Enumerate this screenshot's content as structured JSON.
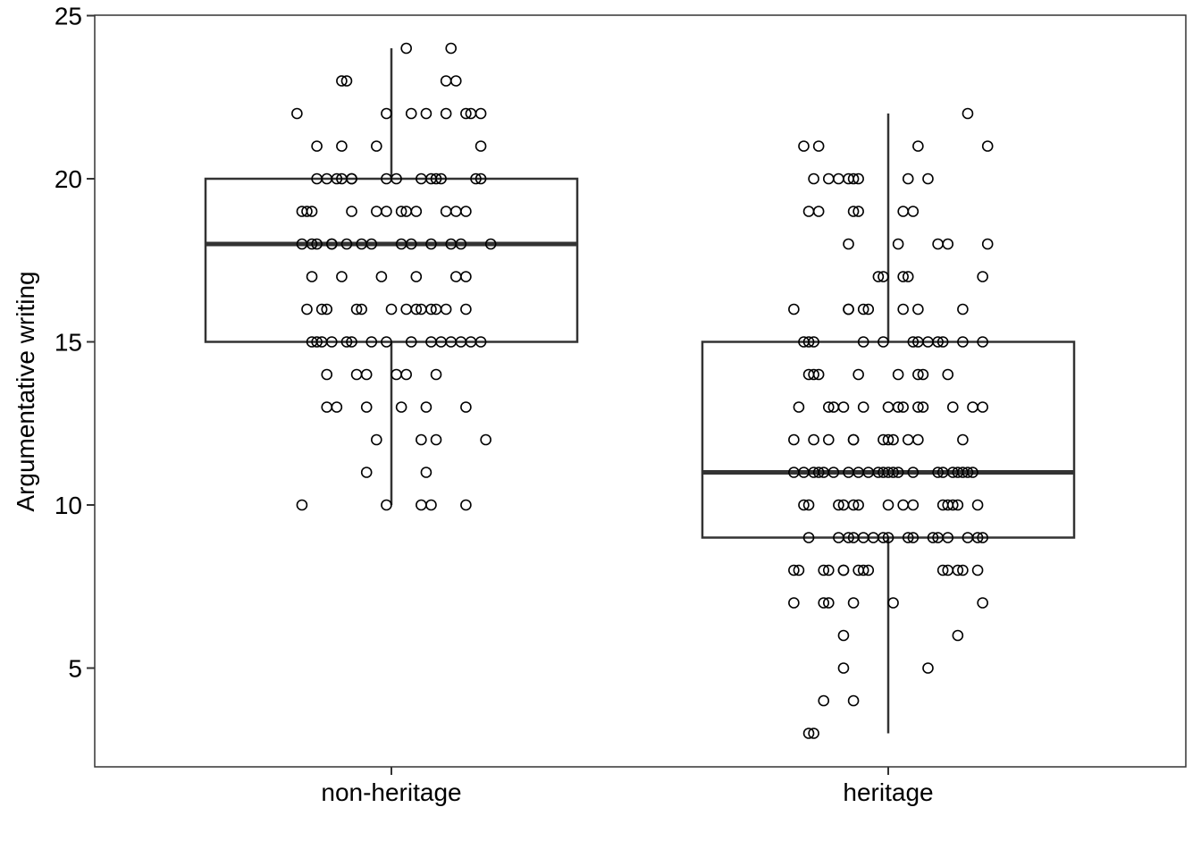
{
  "chart_data": {
    "type": "box",
    "title": "",
    "xlabel": "",
    "ylabel": "Argumentative writing",
    "ylim": [
      2,
      25
    ],
    "yticks": [
      5,
      10,
      15,
      20,
      25
    ],
    "ytick_labels": [
      "5",
      "10",
      "15",
      "20",
      "25"
    ],
    "grid": false,
    "legend": "none",
    "colors": {
      "box": "#333333",
      "point": "#000000",
      "axis": "#333333",
      "background": "#ffffff"
    },
    "categories": [
      "non-heritage",
      "heritage"
    ],
    "groups": [
      {
        "category": "non-heritage",
        "box": {
          "whisker_low": 10,
          "q1": 15,
          "median": 18,
          "q3": 20,
          "whisker_high": 24
        },
        "points": [
          [
            -0.18,
            10
          ],
          [
            -0.01,
            10
          ],
          [
            0.06,
            10
          ],
          [
            0.08,
            10
          ],
          [
            0.15,
            10
          ],
          [
            -0.05,
            11
          ],
          [
            0.07,
            11
          ],
          [
            -0.03,
            12
          ],
          [
            0.06,
            12
          ],
          [
            0.09,
            12
          ],
          [
            0.19,
            12
          ],
          [
            -0.13,
            13
          ],
          [
            -0.11,
            13
          ],
          [
            -0.05,
            13
          ],
          [
            0.02,
            13
          ],
          [
            0.07,
            13
          ],
          [
            0.15,
            13
          ],
          [
            -0.13,
            14
          ],
          [
            -0.07,
            14
          ],
          [
            -0.05,
            14
          ],
          [
            0.01,
            14
          ],
          [
            0.03,
            14
          ],
          [
            0.09,
            14
          ],
          [
            -0.16,
            15
          ],
          [
            -0.15,
            15
          ],
          [
            -0.14,
            15
          ],
          [
            -0.12,
            15
          ],
          [
            -0.09,
            15
          ],
          [
            -0.08,
            15
          ],
          [
            -0.04,
            15
          ],
          [
            -0.01,
            15
          ],
          [
            0.04,
            15
          ],
          [
            0.08,
            15
          ],
          [
            0.1,
            15
          ],
          [
            0.12,
            15
          ],
          [
            0.14,
            15
          ],
          [
            0.16,
            15
          ],
          [
            0.18,
            15
          ],
          [
            -0.17,
            16
          ],
          [
            -0.14,
            16
          ],
          [
            -0.13,
            16
          ],
          [
            -0.07,
            16
          ],
          [
            -0.06,
            16
          ],
          [
            0.0,
            16
          ],
          [
            0.03,
            16
          ],
          [
            0.05,
            16
          ],
          [
            0.06,
            16
          ],
          [
            0.08,
            16
          ],
          [
            0.09,
            16
          ],
          [
            0.11,
            16
          ],
          [
            0.15,
            16
          ],
          [
            -0.16,
            17
          ],
          [
            -0.1,
            17
          ],
          [
            -0.02,
            17
          ],
          [
            0.05,
            17
          ],
          [
            0.13,
            17
          ],
          [
            0.15,
            17
          ],
          [
            -0.18,
            18
          ],
          [
            -0.16,
            18
          ],
          [
            -0.15,
            18
          ],
          [
            -0.12,
            18
          ],
          [
            -0.12,
            18
          ],
          [
            -0.09,
            18
          ],
          [
            -0.06,
            18
          ],
          [
            -0.04,
            18
          ],
          [
            0.02,
            18
          ],
          [
            0.04,
            18
          ],
          [
            0.08,
            18
          ],
          [
            0.12,
            18
          ],
          [
            0.14,
            18
          ],
          [
            0.2,
            18
          ],
          [
            -0.18,
            19
          ],
          [
            -0.17,
            19
          ],
          [
            -0.16,
            19
          ],
          [
            -0.08,
            19
          ],
          [
            -0.03,
            19
          ],
          [
            -0.01,
            19
          ],
          [
            0.02,
            19
          ],
          [
            0.03,
            19
          ],
          [
            0.05,
            19
          ],
          [
            0.11,
            19
          ],
          [
            0.13,
            19
          ],
          [
            0.15,
            19
          ],
          [
            -0.15,
            20
          ],
          [
            -0.13,
            20
          ],
          [
            -0.11,
            20
          ],
          [
            -0.1,
            20
          ],
          [
            -0.08,
            20
          ],
          [
            -0.08,
            20
          ],
          [
            -0.01,
            20
          ],
          [
            0.01,
            20
          ],
          [
            0.06,
            20
          ],
          [
            0.08,
            20
          ],
          [
            0.09,
            20
          ],
          [
            0.1,
            20
          ],
          [
            0.17,
            20
          ],
          [
            0.18,
            20
          ],
          [
            -0.15,
            21
          ],
          [
            -0.1,
            21
          ],
          [
            -0.03,
            21
          ],
          [
            0.18,
            21
          ],
          [
            -0.19,
            22
          ],
          [
            -0.01,
            22
          ],
          [
            0.04,
            22
          ],
          [
            0.07,
            22
          ],
          [
            0.11,
            22
          ],
          [
            0.15,
            22
          ],
          [
            0.16,
            22
          ],
          [
            0.18,
            22
          ],
          [
            -0.1,
            23
          ],
          [
            -0.09,
            23
          ],
          [
            0.11,
            23
          ],
          [
            0.13,
            23
          ],
          [
            0.03,
            24
          ],
          [
            0.12,
            24
          ]
        ]
      },
      {
        "category": "heritage",
        "box": {
          "whisker_low": 3,
          "q1": 9,
          "median": 11,
          "q3": 15,
          "whisker_high": 22
        },
        "points": [
          [
            -0.16,
            3
          ],
          [
            -0.15,
            3
          ],
          [
            -0.13,
            4
          ],
          [
            -0.07,
            4
          ],
          [
            -0.09,
            5
          ],
          [
            0.08,
            5
          ],
          [
            -0.09,
            6
          ],
          [
            0.14,
            6
          ],
          [
            -0.19,
            7
          ],
          [
            -0.13,
            7
          ],
          [
            -0.12,
            7
          ],
          [
            -0.07,
            7
          ],
          [
            0.01,
            7
          ],
          [
            0.19,
            7
          ],
          [
            -0.19,
            8
          ],
          [
            -0.18,
            8
          ],
          [
            -0.13,
            8
          ],
          [
            -0.12,
            8
          ],
          [
            -0.09,
            8
          ],
          [
            -0.09,
            8
          ],
          [
            -0.06,
            8
          ],
          [
            -0.05,
            8
          ],
          [
            -0.04,
            8
          ],
          [
            0.11,
            8
          ],
          [
            0.12,
            8
          ],
          [
            0.14,
            8
          ],
          [
            0.15,
            8
          ],
          [
            0.18,
            8
          ],
          [
            -0.16,
            9
          ],
          [
            -0.1,
            9
          ],
          [
            -0.08,
            9
          ],
          [
            -0.07,
            9
          ],
          [
            -0.05,
            9
          ],
          [
            -0.03,
            9
          ],
          [
            -0.01,
            9
          ],
          [
            0.0,
            9
          ],
          [
            0.04,
            9
          ],
          [
            0.05,
            9
          ],
          [
            0.09,
            9
          ],
          [
            0.1,
            9
          ],
          [
            0.12,
            9
          ],
          [
            0.16,
            9
          ],
          [
            0.18,
            9
          ],
          [
            0.19,
            9
          ],
          [
            -0.17,
            10
          ],
          [
            -0.16,
            10
          ],
          [
            -0.1,
            10
          ],
          [
            -0.09,
            10
          ],
          [
            -0.07,
            10
          ],
          [
            -0.06,
            10
          ],
          [
            0.0,
            10
          ],
          [
            0.03,
            10
          ],
          [
            0.05,
            10
          ],
          [
            0.11,
            10
          ],
          [
            0.12,
            10
          ],
          [
            0.13,
            10
          ],
          [
            0.14,
            10
          ],
          [
            0.18,
            10
          ],
          [
            -0.19,
            11
          ],
          [
            -0.17,
            11
          ],
          [
            -0.15,
            11
          ],
          [
            -0.14,
            11
          ],
          [
            -0.13,
            11
          ],
          [
            -0.11,
            11
          ],
          [
            -0.08,
            11
          ],
          [
            -0.06,
            11
          ],
          [
            -0.04,
            11
          ],
          [
            -0.02,
            11
          ],
          [
            -0.01,
            11
          ],
          [
            0.0,
            11
          ],
          [
            0.01,
            11
          ],
          [
            0.02,
            11
          ],
          [
            0.05,
            11
          ],
          [
            0.1,
            11
          ],
          [
            0.11,
            11
          ],
          [
            0.13,
            11
          ],
          [
            0.14,
            11
          ],
          [
            0.15,
            11
          ],
          [
            0.16,
            11
          ],
          [
            0.17,
            11
          ],
          [
            -0.19,
            12
          ],
          [
            -0.15,
            12
          ],
          [
            -0.12,
            12
          ],
          [
            -0.07,
            12
          ],
          [
            -0.07,
            12
          ],
          [
            -0.01,
            12
          ],
          [
            0.0,
            12
          ],
          [
            0.01,
            12
          ],
          [
            0.04,
            12
          ],
          [
            0.06,
            12
          ],
          [
            0.15,
            12
          ],
          [
            -0.18,
            13
          ],
          [
            -0.12,
            13
          ],
          [
            -0.11,
            13
          ],
          [
            -0.09,
            13
          ],
          [
            -0.05,
            13
          ],
          [
            0.0,
            13
          ],
          [
            0.02,
            13
          ],
          [
            0.03,
            13
          ],
          [
            0.06,
            13
          ],
          [
            0.07,
            13
          ],
          [
            0.13,
            13
          ],
          [
            0.17,
            13
          ],
          [
            0.19,
            13
          ],
          [
            -0.16,
            14
          ],
          [
            -0.15,
            14
          ],
          [
            -0.14,
            14
          ],
          [
            -0.06,
            14
          ],
          [
            0.02,
            14
          ],
          [
            0.06,
            14
          ],
          [
            0.07,
            14
          ],
          [
            0.12,
            14
          ],
          [
            -0.17,
            15
          ],
          [
            -0.16,
            15
          ],
          [
            -0.15,
            15
          ],
          [
            -0.05,
            15
          ],
          [
            -0.01,
            15
          ],
          [
            0.05,
            15
          ],
          [
            0.06,
            15
          ],
          [
            0.08,
            15
          ],
          [
            0.1,
            15
          ],
          [
            0.11,
            15
          ],
          [
            0.15,
            15
          ],
          [
            0.19,
            15
          ],
          [
            -0.19,
            16
          ],
          [
            -0.08,
            16
          ],
          [
            -0.08,
            16
          ],
          [
            -0.05,
            16
          ],
          [
            -0.04,
            16
          ],
          [
            0.03,
            16
          ],
          [
            0.06,
            16
          ],
          [
            0.15,
            16
          ],
          [
            -0.02,
            17
          ],
          [
            -0.01,
            17
          ],
          [
            0.03,
            17
          ],
          [
            0.04,
            17
          ],
          [
            0.19,
            17
          ],
          [
            -0.08,
            18
          ],
          [
            0.02,
            18
          ],
          [
            0.1,
            18
          ],
          [
            0.12,
            18
          ],
          [
            0.2,
            18
          ],
          [
            -0.16,
            19
          ],
          [
            -0.14,
            19
          ],
          [
            -0.07,
            19
          ],
          [
            -0.06,
            19
          ],
          [
            0.03,
            19
          ],
          [
            0.05,
            19
          ],
          [
            -0.15,
            20
          ],
          [
            -0.12,
            20
          ],
          [
            -0.1,
            20
          ],
          [
            -0.08,
            20
          ],
          [
            -0.07,
            20
          ],
          [
            -0.06,
            20
          ],
          [
            0.04,
            20
          ],
          [
            0.08,
            20
          ],
          [
            -0.17,
            21
          ],
          [
            -0.14,
            21
          ],
          [
            0.06,
            21
          ],
          [
            0.2,
            21
          ],
          [
            0.16,
            22
          ]
        ]
      }
    ]
  }
}
